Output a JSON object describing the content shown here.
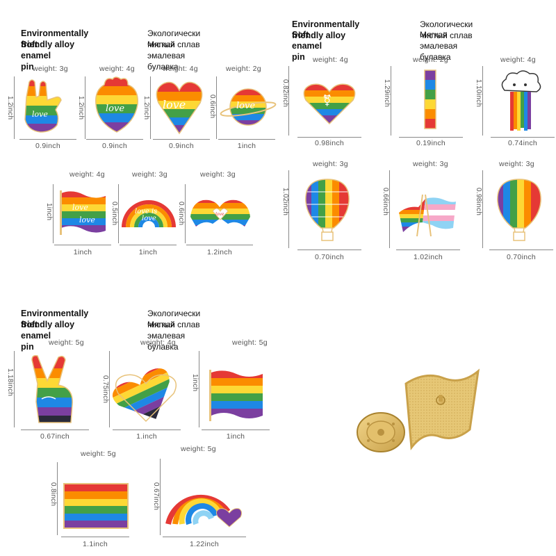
{
  "panels": [
    {
      "title_en_1": "Environmentally friendly alloy",
      "title_en_2": "Soft enamel pin",
      "title_ru_1": "Экологически чистый сплав",
      "title_ru_2": "Мягкая эмалевая булавка",
      "pins": [
        {
          "name": "love-hand",
          "weight": "weight: 3g",
          "height": "1.2inch",
          "width": "0.9inch",
          "icon": "love-hand-icon"
        },
        {
          "name": "rainbow-heart-organ",
          "weight": "weight: 4g",
          "height": "1.2inch",
          "width": "0.9inch",
          "icon": "anatomical-heart-icon"
        },
        {
          "name": "love-heart",
          "weight": "weight: 4g",
          "height": "1.2inch",
          "width": "0.9inch",
          "icon": "heart-icon"
        },
        {
          "name": "love-planet",
          "weight": "weight: 2g",
          "height": "0.6inch",
          "width": "1inch",
          "icon": "planet-icon"
        },
        {
          "name": "love-flag",
          "weight": "weight: 4g",
          "height": "1inch",
          "width": "1inch",
          "icon": "flag-icon"
        },
        {
          "name": "love-rainbow",
          "weight": "weight: 3g",
          "height": "0.5inch",
          "width": "1inch",
          "icon": "rainbow-icon"
        },
        {
          "name": "heart-hands",
          "weight": "weight: 3g",
          "height": "0.6inch",
          "width": "1.2inch",
          "icon": "heart-hands-icon"
        }
      ]
    },
    {
      "title_en_1": "Environmentally friendly alloy",
      "title_en_2": "Soft enamel pin",
      "title_ru_1": "Экологически чистый сплав",
      "title_ru_2": "Мягкая эмалевая булавка",
      "pins": [
        {
          "name": "gender-heart",
          "weight": "weight:  4g",
          "height": "0.82inch",
          "width": "0.98inch",
          "icon": "gender-heart-icon"
        },
        {
          "name": "rainbow-bar",
          "weight": "weight:  2g",
          "height": "1.29inch",
          "width": "0.19inch",
          "icon": "bar-icon"
        },
        {
          "name": "rainbow-cloud",
          "weight": "weight:  4g",
          "height": "1.10inch",
          "width": "0.74inch",
          "icon": "cloud-icon"
        },
        {
          "name": "balloon-striped",
          "weight": "weight:  3g",
          "height": "1.02inch",
          "width": "0.70inch",
          "icon": "hot-air-balloon-icon"
        },
        {
          "name": "crossed-flags",
          "weight": "weight:  3g",
          "height": "0.66inch",
          "width": "1.02inch",
          "icon": "crossed-flags-icon"
        },
        {
          "name": "balloon-plain",
          "weight": "weight:  3g",
          "height": "0.98inch",
          "width": "0.70inch",
          "icon": "hot-air-balloon-icon"
        }
      ]
    },
    {
      "title_en_1": "Environmentally friendly alloy",
      "title_en_2": "Soft enamel pin",
      "title_ru_1": "Экологически чистый сплав",
      "title_ru_2": "Мягкая эмалевая булавка",
      "pins": [
        {
          "name": "peace-hand",
          "weight": "weight: 5g",
          "height": "1.18inch",
          "width": "0.67inch",
          "icon": "peace-hand-icon"
        },
        {
          "name": "striped-heart",
          "weight": "weight: 4g",
          "height": "0.75inch",
          "width": "1.inch",
          "icon": "heart-icon"
        },
        {
          "name": "wave-flag",
          "weight": "weight: 5g",
          "height": "1inch",
          "width": "1inch",
          "icon": "flag-icon"
        },
        {
          "name": "rect-flag",
          "weight": "weight: 5g",
          "height": "0.8inch",
          "width": "1.1inch",
          "icon": "flag-icon"
        },
        {
          "name": "rainbow-heart",
          "weight": "weight: 5g",
          "height": "0.67inch",
          "width": "1.22inch",
          "icon": "rainbow-icon"
        }
      ]
    }
  ],
  "product_photo": {
    "icon": "pin-back-photo-icon"
  },
  "colors": {
    "red": "#e53935",
    "orange": "#fb8c00",
    "yellow": "#fdd835",
    "green": "#43a047",
    "blue": "#1e88e5",
    "purple": "#7b3fa0",
    "gold": "#d9b45a",
    "trans_blue": "#8fd3f4",
    "trans_pink": "#f6a8c8"
  }
}
